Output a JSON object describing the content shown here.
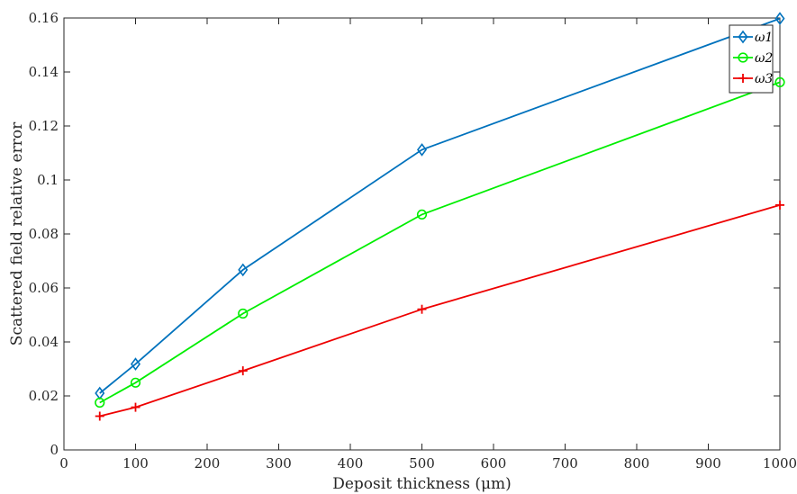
{
  "chart_data": {
    "type": "line",
    "xlabel": "Deposit thickness (μm)",
    "ylabel": "Scattered field relative error",
    "xlim": [
      0,
      1000
    ],
    "ylim": [
      0,
      0.16
    ],
    "x_ticks": [
      "0",
      "100",
      "200",
      "300",
      "400",
      "500",
      "600",
      "700",
      "800",
      "900",
      "1000"
    ],
    "y_ticks": [
      "0",
      "0.02",
      "0.04",
      "0.06",
      "0.08",
      "0.1",
      "0.12",
      "0.14",
      "0.16"
    ],
    "grid": false,
    "legend_position": "top-right",
    "x": [
      50,
      100,
      250,
      500,
      1000
    ],
    "series": [
      {
        "name": "ω1",
        "marker": "diamond",
        "color": "#0072BD",
        "values": [
          0.021,
          0.0318,
          0.0667,
          0.1112,
          0.1598
        ]
      },
      {
        "name": "ω2",
        "marker": "circle",
        "color": "#00EE00",
        "values": [
          0.0175,
          0.0249,
          0.0505,
          0.0872,
          0.1362
        ]
      },
      {
        "name": "ω3",
        "marker": "plus",
        "color": "#EE0000",
        "values": [
          0.0125,
          0.0158,
          0.0293,
          0.0521,
          0.0907
        ]
      }
    ]
  }
}
